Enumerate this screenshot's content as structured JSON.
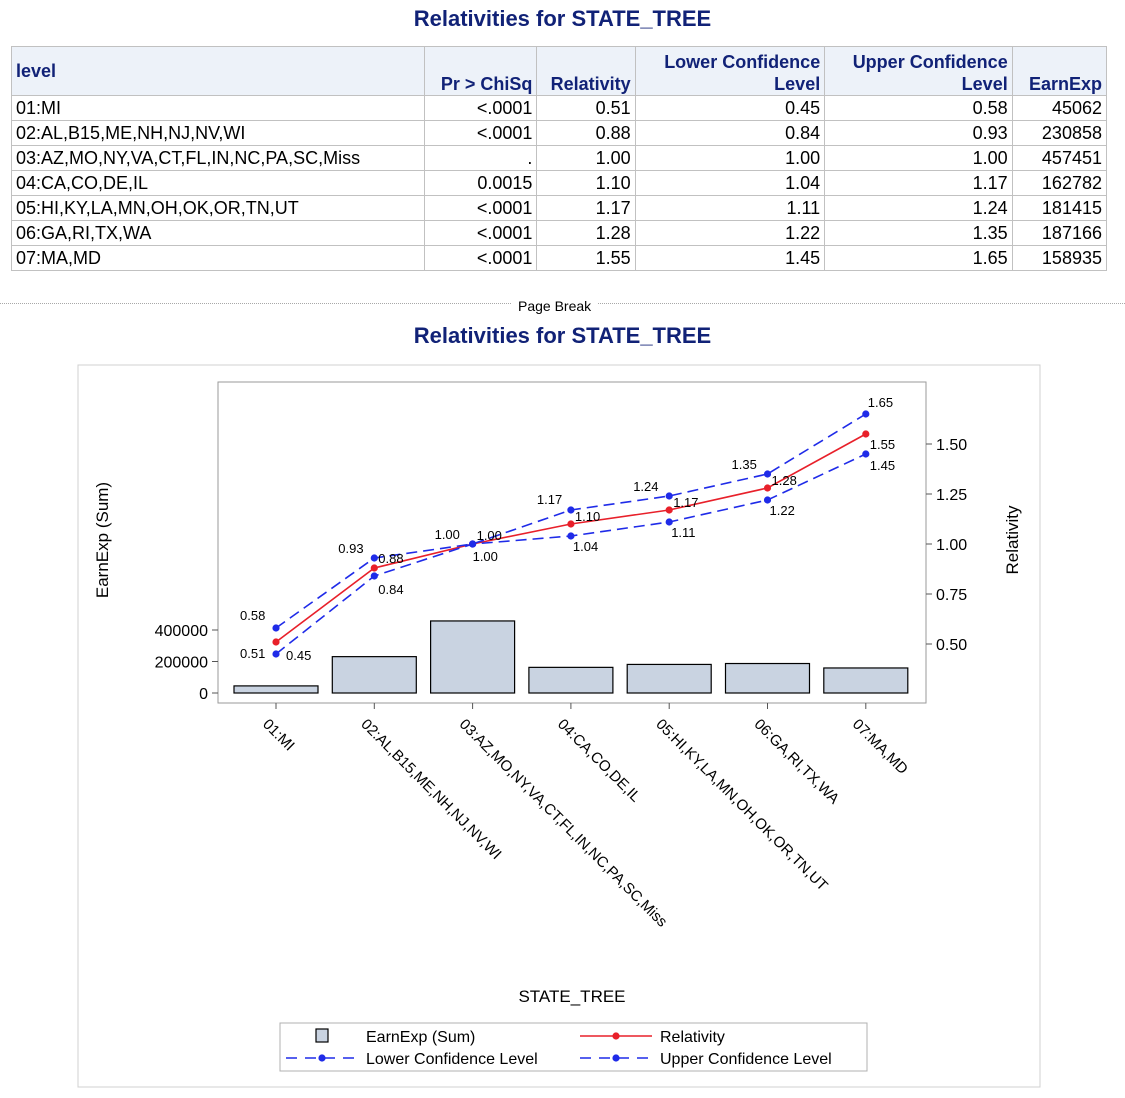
{
  "page": {
    "table_title": "Relativities for STATE_TREE",
    "chart_title": "Relativities for STATE_TREE",
    "page_break_label": "Page Break"
  },
  "table": {
    "columns": [
      "level",
      "Pr > ChiSq",
      "Relativity",
      "Lower Confidence Level",
      "Upper Confidence Level",
      "EarnExp"
    ],
    "rows": [
      [
        "01:MI",
        "<.0001",
        "0.51",
        "0.45",
        "0.58",
        "45062"
      ],
      [
        "02:AL,B15,ME,NH,NJ,NV,WI",
        "<.0001",
        "0.88",
        "0.84",
        "0.93",
        "230858"
      ],
      [
        "03:AZ,MO,NY,VA,CT,FL,IN,NC,PA,SC,Miss",
        ".",
        "1.00",
        "1.00",
        "1.00",
        "457451"
      ],
      [
        "04:CA,CO,DE,IL",
        "0.0015",
        "1.10",
        "1.04",
        "1.17",
        "162782"
      ],
      [
        "05:HI,KY,LA,MN,OH,OK,OR,TN,UT",
        "<.0001",
        "1.17",
        "1.11",
        "1.24",
        "181415"
      ],
      [
        "06:GA,RI,TX,WA",
        "<.0001",
        "1.28",
        "1.22",
        "1.35",
        "187166"
      ],
      [
        "07:MA,MD",
        "<.0001",
        "1.55",
        "1.45",
        "1.65",
        "158935"
      ]
    ]
  },
  "chart_data": {
    "type": "bar",
    "title": "Relativities for STATE_TREE",
    "xlabel": "STATE_TREE",
    "ylabel": "EarnExp (Sum)",
    "y2label": "Relativity",
    "categories": [
      "01:MI",
      "02:AL,B15,ME,NH,NJ,NV,WI",
      "03:AZ,MO,NY,VA,CT,FL,IN,NC,PA,SC,Miss",
      "04:CA,CO,DE,IL",
      "05:HI,KY,LA,MN,OH,OK,OR,TN,UT",
      "06:GA,RI,TX,WA",
      "07:MA,MD"
    ],
    "y_ticks": [
      "0",
      "200000",
      "400000"
    ],
    "y2_ticks": [
      "0.50",
      "0.75",
      "1.00",
      "1.25",
      "1.50"
    ],
    "y2_lim": [
      0.4,
      1.72
    ],
    "series": [
      {
        "name": "EarnExp (Sum)",
        "type": "bar",
        "axis": "left",
        "values": [
          45062,
          230858,
          457451,
          162782,
          181415,
          187166,
          158935
        ],
        "color": "#c9d3e1",
        "edge": "#000000"
      },
      {
        "name": "Relativity",
        "type": "line",
        "axis": "right",
        "values": [
          0.51,
          0.88,
          1.0,
          1.1,
          1.17,
          1.28,
          1.55
        ],
        "labels": [
          "0.51",
          "0.88",
          "1.00",
          "1.10",
          "1.17",
          "1.28",
          "1.55"
        ],
        "color": "#e8202a",
        "dash": "solid"
      },
      {
        "name": "Lower Confidence Level",
        "type": "line",
        "axis": "right",
        "values": [
          0.45,
          0.84,
          1.0,
          1.04,
          1.11,
          1.22,
          1.45
        ],
        "labels": [
          "0.45",
          "0.84",
          "1.00",
          "1.04",
          "1.11",
          "1.22",
          "1.45"
        ],
        "color": "#1f2be8",
        "dash": "dashed"
      },
      {
        "name": "Upper Confidence Level",
        "type": "line",
        "axis": "right",
        "values": [
          0.58,
          0.93,
          1.0,
          1.17,
          1.24,
          1.35,
          1.65
        ],
        "labels": [
          "0.58",
          "0.93",
          "1.00",
          "1.17",
          "1.24",
          "1.35",
          "1.65"
        ],
        "color": "#1f2be8",
        "dash": "dashed"
      }
    ],
    "legend": [
      "EarnExp (Sum)",
      "Relativity",
      "Lower Confidence Level",
      "Upper Confidence Level"
    ],
    "legend_position": "bottom",
    "grid": false
  }
}
